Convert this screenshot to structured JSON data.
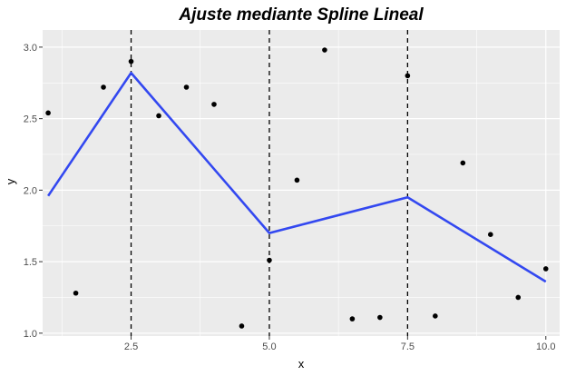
{
  "chart_data": {
    "type": "scatter",
    "title": "Ajuste mediante Spline Lineal",
    "xlabel": "x",
    "ylabel": "y",
    "xlim": [
      0.9,
      10.25
    ],
    "ylim": [
      0.98,
      3.12
    ],
    "x_ticks": [
      2.5,
      5.0,
      7.5,
      10.0
    ],
    "x_tick_labels": [
      "2.5",
      "5.0",
      "7.5",
      "10.0"
    ],
    "y_ticks": [
      1.0,
      1.5,
      2.0,
      2.5,
      3.0
    ],
    "y_tick_labels": [
      "1.0",
      "1.5",
      "2.0",
      "2.5",
      "3.0"
    ],
    "grid": true,
    "points": [
      {
        "x": 1.0,
        "y": 2.54
      },
      {
        "x": 1.5,
        "y": 1.28
      },
      {
        "x": 2.0,
        "y": 2.72
      },
      {
        "x": 2.5,
        "y": 2.9
      },
      {
        "x": 3.0,
        "y": 2.52
      },
      {
        "x": 3.5,
        "y": 2.72
      },
      {
        "x": 4.0,
        "y": 2.6
      },
      {
        "x": 4.5,
        "y": 1.05
      },
      {
        "x": 5.0,
        "y": 1.51
      },
      {
        "x": 5.5,
        "y": 2.07
      },
      {
        "x": 6.0,
        "y": 2.98
      },
      {
        "x": 6.5,
        "y": 1.1
      },
      {
        "x": 7.0,
        "y": 1.11
      },
      {
        "x": 7.5,
        "y": 2.8
      },
      {
        "x": 8.0,
        "y": 1.12
      },
      {
        "x": 8.5,
        "y": 2.19
      },
      {
        "x": 9.0,
        "y": 1.69
      },
      {
        "x": 9.5,
        "y": 1.25
      },
      {
        "x": 10.0,
        "y": 1.45
      }
    ],
    "fit_line": {
      "x": [
        1.0,
        2.5,
        5.0,
        7.5,
        10.0
      ],
      "y": [
        1.96,
        2.82,
        1.7,
        1.95,
        1.36
      ],
      "color": "#3348F0"
    },
    "knots": [
      2.5,
      5.0,
      7.5
    ],
    "colors": {
      "panel": "#EBEBEB",
      "grid_major": "#FFFFFF",
      "points": "#000000",
      "knot_lines": "#000000"
    }
  }
}
